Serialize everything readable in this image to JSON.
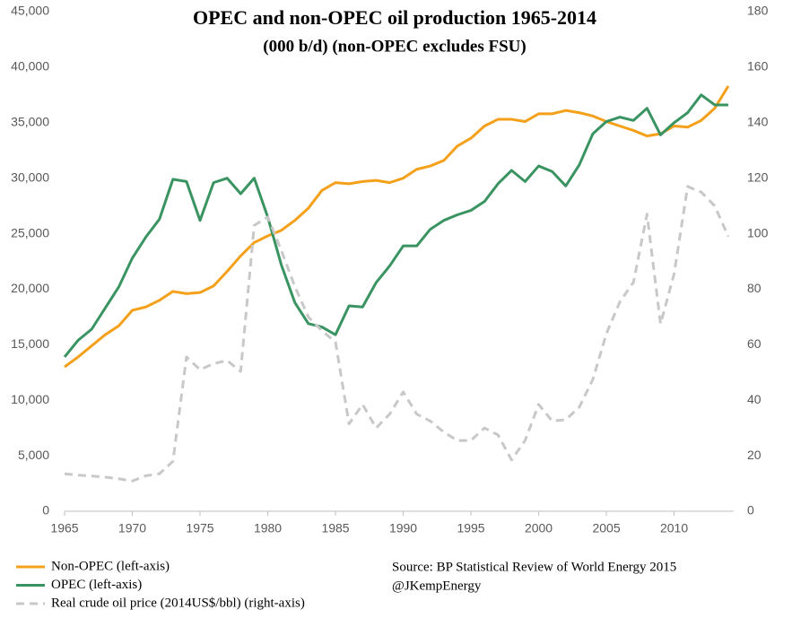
{
  "chart_data": {
    "type": "line",
    "title": "OPEC and non-OPEC oil production 1965-2014",
    "subtitle": "(000 b/d)  (non-OPEC excludes FSU)",
    "annotations": [
      "Source: BP Statistical Review of World Energy 2015",
      "@JKempEnergy"
    ],
    "x": [
      1965,
      1966,
      1967,
      1968,
      1969,
      1970,
      1971,
      1972,
      1973,
      1974,
      1975,
      1976,
      1977,
      1978,
      1979,
      1980,
      1981,
      1982,
      1983,
      1984,
      1985,
      1986,
      1987,
      1988,
      1989,
      1990,
      1991,
      1992,
      1993,
      1994,
      1995,
      1996,
      1997,
      1998,
      1999,
      2000,
      2001,
      2002,
      2003,
      2004,
      2005,
      2006,
      2007,
      2008,
      2009,
      2010,
      2011,
      2012,
      2013,
      2014
    ],
    "xlim": [
      1965,
      2014.4
    ],
    "xticks": [
      1965,
      1970,
      1975,
      1980,
      1985,
      1990,
      1995,
      2000,
      2005,
      2010
    ],
    "ylim": [
      0,
      45000
    ],
    "yticks": [
      0,
      {
        "value": 5000,
        "label": "5,000"
      },
      {
        "value": 10000,
        "label": "10,000"
      },
      {
        "value": 15000,
        "label": "15,000"
      },
      {
        "value": 20000,
        "label": "20,000"
      },
      {
        "value": 25000,
        "label": "25,000"
      },
      {
        "value": 30000,
        "label": "30,000"
      },
      {
        "value": 35000,
        "label": "35,000"
      },
      {
        "value": 40000,
        "label": "40,000"
      },
      {
        "value": 45000,
        "label": "45,000"
      }
    ],
    "y2lim": [
      0,
      180
    ],
    "y2ticks": [
      0,
      20,
      40,
      60,
      80,
      100,
      120,
      140,
      160,
      180
    ],
    "series": [
      {
        "name": "Non-OPEC (left-axis)",
        "color": "#f5a01a",
        "dashed": false,
        "values": [
          13000,
          13900,
          14900,
          15900,
          16700,
          18100,
          18400,
          19000,
          19800,
          19600,
          19700,
          20300,
          21600,
          23000,
          24200,
          24800,
          25300,
          26200,
          27300,
          28900,
          29600,
          29500,
          29700,
          29800,
          29600,
          30000,
          30800,
          31100,
          31600,
          32900,
          33600,
          34700,
          35300,
          35300,
          35100,
          35800,
          35800,
          36100,
          35900,
          35600,
          35100,
          34700,
          34300,
          33800,
          34000,
          34700,
          34600,
          35200,
          36300,
          38300
        ]
      },
      {
        "name": "OPEC (left-axis)",
        "color": "#3a9461",
        "dashed": false,
        "values": [
          13900,
          15400,
          16400,
          18300,
          20200,
          22800,
          24700,
          26300,
          29900,
          29700,
          26200,
          29600,
          30000,
          28600,
          30000,
          26500,
          22200,
          18800,
          16900,
          16600,
          15900,
          18500,
          18400,
          20600,
          22100,
          23900,
          23900,
          25400,
          26200,
          26700,
          27100,
          27900,
          29500,
          30700,
          29700,
          31100,
          30600,
          29300,
          31200,
          34000,
          35100,
          35500,
          35200,
          36300,
          33900,
          35000,
          35900,
          37500,
          36600,
          36600
        ]
      },
      {
        "name": "Real crude oil price (2014US$/bbl) (right-axis)",
        "color": "#c8c8c8",
        "dashed": true,
        "axis": "y2",
        "values": [
          13.5,
          13,
          12.7,
          12.3,
          11.7,
          10.9,
          12.8,
          13.5,
          18,
          55.6,
          51,
          53.2,
          54.3,
          50.4,
          103,
          106,
          94,
          81,
          70,
          65,
          61,
          31.5,
          38.5,
          30,
          35,
          43,
          35,
          32.5,
          28.5,
          25.5,
          25.5,
          30,
          27.5,
          18.5,
          25.5,
          38.5,
          32.5,
          33,
          37.5,
          47.5,
          64,
          75.5,
          82.5,
          107,
          67.5,
          85.5,
          117,
          115,
          110,
          99
        ]
      }
    ]
  }
}
